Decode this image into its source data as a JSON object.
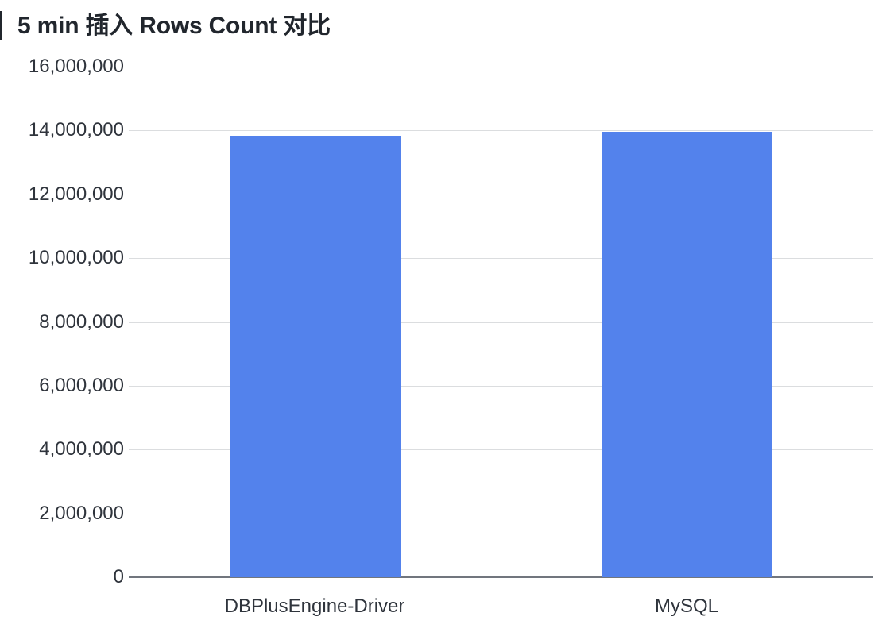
{
  "title": "5 min 插入 Rows Count 对比",
  "chart_data": {
    "type": "bar",
    "title": "5 min 插入 Rows Count 对比",
    "categories": [
      "DBPlusEngine-Driver",
      "MySQL"
    ],
    "values": [
      13840000,
      13950000
    ],
    "xlabel": "",
    "ylabel": "",
    "ylim": [
      0,
      16000000
    ],
    "ytick_step": 2000000,
    "ytick_labels": [
      "0",
      "2,000,000",
      "4,000,000",
      "6,000,000",
      "8,000,000",
      "10,000,000",
      "12,000,000",
      "14,000,000",
      "16,000,000"
    ],
    "grid": true,
    "legend": "none",
    "bar_color": "#5382EC",
    "grid_color": "#DBDDDF",
    "axis_color": "#71767E",
    "title_color": "#21262D",
    "label_color": "#2F343C"
  }
}
